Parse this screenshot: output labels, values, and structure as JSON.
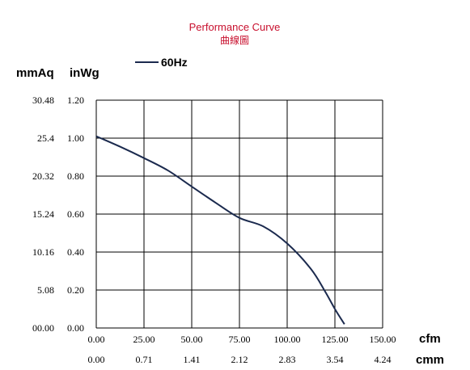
{
  "chart_data": {
    "type": "line",
    "title": "Performance Curve",
    "subtitle": "曲線圖",
    "y_unit_left": "mmAq",
    "y_unit_right": "inWg",
    "x_unit_primary": "cfm",
    "x_unit_secondary": "cmm",
    "xlim": [
      0,
      150
    ],
    "ylim": [
      0,
      1.2
    ],
    "grid": true,
    "legend": "top-center",
    "x_ticks": [
      "0.00",
      "25.00",
      "50.00",
      "75.00",
      "100.00",
      "125.00",
      "150.00"
    ],
    "x_ticks_secondary": [
      "0.00",
      "0.71",
      "1.41",
      "2.12",
      "2.83",
      "3.54",
      "4.24"
    ],
    "y_ticks_inwg": [
      "0.00",
      "0.20",
      "0.40",
      "0.60",
      "0.80",
      "1.00",
      "1.20"
    ],
    "y_ticks_mmaq": [
      "00.00",
      "5.08",
      "10.16",
      "15.24",
      "20.32",
      "25.4",
      "30.48"
    ],
    "series": [
      {
        "name": "60Hz",
        "color": "#1b2a4e",
        "x": [
          0,
          12.5,
          25,
          37.5,
          50,
          62.5,
          75,
          87.5,
          100,
          112.5,
          120,
          125,
          130
        ],
        "y": [
          1.01,
          0.955,
          0.895,
          0.83,
          0.745,
          0.66,
          0.58,
          0.535,
          0.445,
          0.31,
          0.19,
          0.1,
          0.02
        ]
      }
    ],
    "title_color": "#c8102e"
  }
}
